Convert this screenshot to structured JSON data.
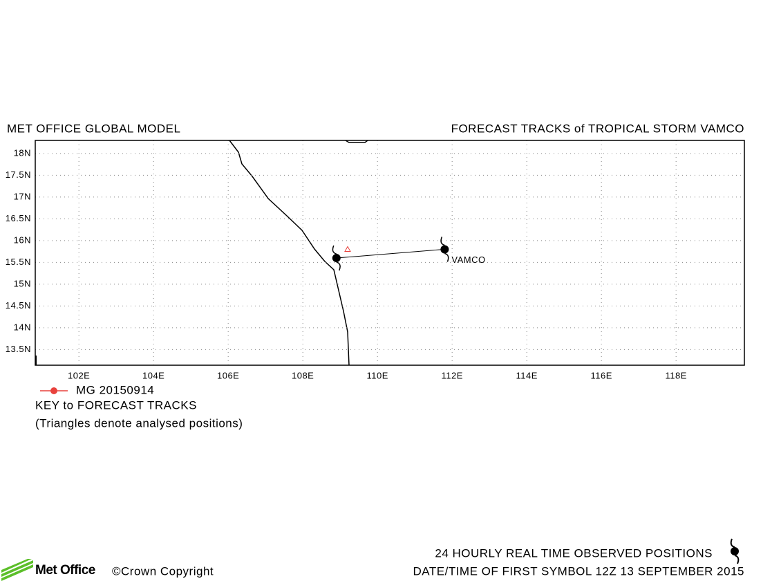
{
  "chart_data": {
    "type": "track",
    "title_left": "MET OFFICE GLOBAL MODEL",
    "title_right": "FORECAST TRACKS of TROPICAL STORM VAMCO",
    "xlim": [
      100.83,
      119.83
    ],
    "ylim": [
      13.14,
      18.3
    ],
    "xticks": [
      {
        "value": 102,
        "label": "102E"
      },
      {
        "value": 104,
        "label": "104E"
      },
      {
        "value": 106,
        "label": "106E"
      },
      {
        "value": 108,
        "label": "108E"
      },
      {
        "value": 110,
        "label": "110E"
      },
      {
        "value": 112,
        "label": "112E"
      },
      {
        "value": 114,
        "label": "114E"
      },
      {
        "value": 116,
        "label": "116E"
      },
      {
        "value": 118,
        "label": "118E"
      }
    ],
    "yticks": [
      {
        "value": 13.5,
        "label": "13.5N"
      },
      {
        "value": 14,
        "label": "14N"
      },
      {
        "value": 14.5,
        "label": "14.5N"
      },
      {
        "value": 15,
        "label": "15N"
      },
      {
        "value": 15.5,
        "label": "15.5N"
      },
      {
        "value": 16,
        "label": "16N"
      },
      {
        "value": 16.5,
        "label": "16.5N"
      },
      {
        "value": 17,
        "label": "17N"
      },
      {
        "value": 17.5,
        "label": "17.5N"
      },
      {
        "value": 18,
        "label": "18N"
      }
    ],
    "grid": true,
    "series": [
      {
        "name": "MG 20150914",
        "color": "#e8413c",
        "x": [
          108.9,
          111.8
        ],
        "values": [
          15.6,
          15.8
        ]
      }
    ],
    "analysed": {
      "x": 109.2,
      "value": 15.8,
      "color": "#e8413c"
    },
    "storm_label": "VAMCO",
    "key_title": "KEY to FORECAST TRACKS",
    "key_note": "(Triangles denote analysed positions)",
    "footer_observed": "24 HOURLY REAL TIME OBSERVED POSITIONS",
    "footer_date": "DATE/TIME OF FIRST SYMBOL 12Z 13 SEPTEMBER 2015",
    "logo": "Met Office",
    "copyright": "©Crown Copyright"
  }
}
